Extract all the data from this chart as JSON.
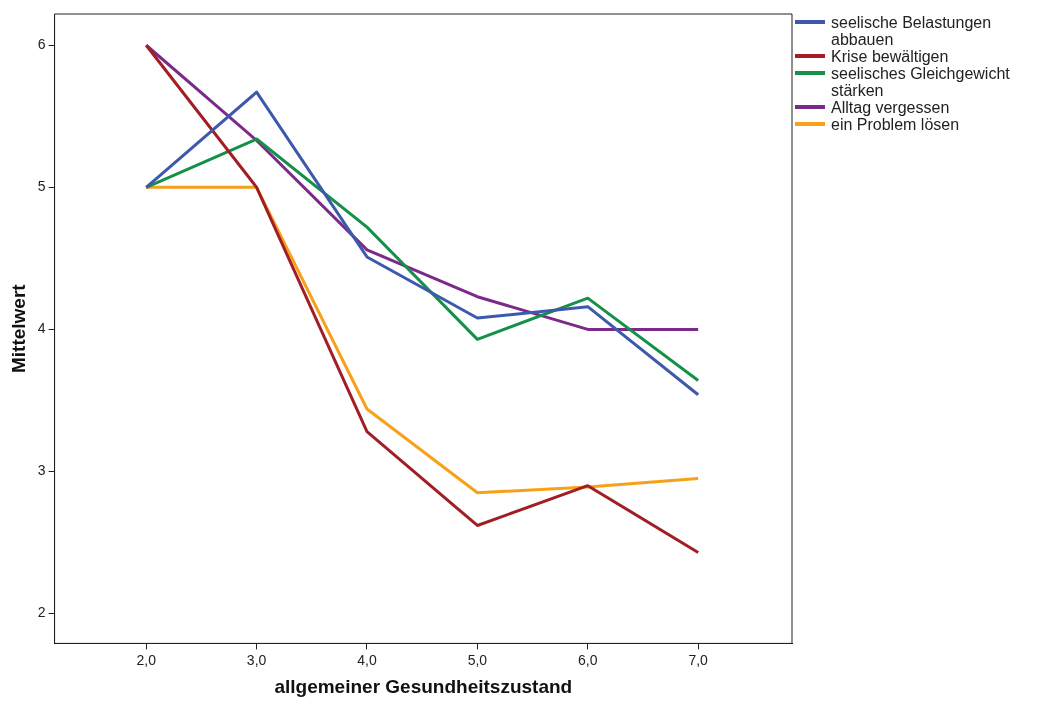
{
  "chart_data": {
    "type": "line",
    "xlabel": "allgemeiner Gesundheitszustand",
    "ylabel": "Mittelwert",
    "x": [
      2,
      3,
      4,
      5,
      6,
      7
    ],
    "xlim": [
      1.17,
      7.85
    ],
    "xticks": [
      {
        "value": 2,
        "label": "2,0"
      },
      {
        "value": 3,
        "label": "3,0"
      },
      {
        "value": 4,
        "label": "4,0"
      },
      {
        "value": 5,
        "label": "5,0"
      },
      {
        "value": 6,
        "label": "6,0"
      },
      {
        "value": 7,
        "label": "7,0"
      }
    ],
    "ylim": [
      1.79,
      6.22
    ],
    "yticks": [
      2,
      3,
      4,
      5,
      6
    ],
    "grid": false,
    "legend": "right",
    "marker": "none",
    "line_style": "solid",
    "series": [
      {
        "name": "seelische Belastungen abbauen",
        "color": "#3e58ac",
        "values": [
          5.0,
          5.67,
          4.51,
          4.08,
          4.16,
          3.54
        ]
      },
      {
        "name": "Krise bewältigen",
        "color": "#a11f24",
        "values": [
          6.0,
          5.0,
          3.28,
          2.62,
          2.9,
          2.43
        ]
      },
      {
        "name": "seelisches Gleichgewicht stärken",
        "color": "#159048",
        "values": [
          5.0,
          5.34,
          4.72,
          3.93,
          4.22,
          3.64
        ]
      },
      {
        "name": "Alltag vergessen",
        "color": "#7b2a8a",
        "values": [
          6.0,
          5.33,
          4.56,
          4.23,
          4.0,
          4.0
        ]
      },
      {
        "name": "ein Problem lösen",
        "color": "#f7a11a",
        "values": [
          5.0,
          5.0,
          3.44,
          2.85,
          2.89,
          2.95
        ]
      }
    ]
  }
}
